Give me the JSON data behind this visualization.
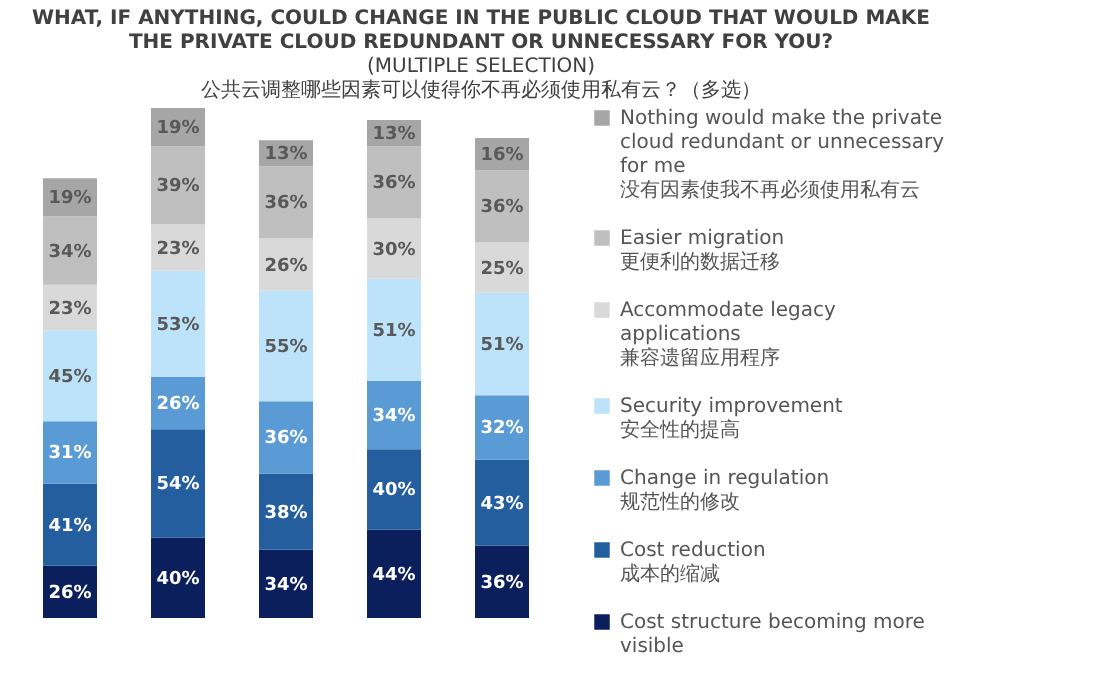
{
  "chart_data": {
    "type": "bar",
    "stacked": true,
    "title": [
      "WHAT, IF ANYTHING, COULD CHANGE IN THE PUBLIC CLOUD THAT WOULD MAKE",
      "THE PRIVATE CLOUD REDUNDANT OR UNNECESSARY FOR YOU?"
    ],
    "subtitle": [
      "(MULTIPLE SELECTION)",
      "公共云调整哪些因素可以使得你不再必须使用私有云？（多选）"
    ],
    "categories": [
      null,
      null,
      null,
      null,
      null
    ],
    "tick_labels": false,
    "legend": "right",
    "series": [
      {
        "name": "Cost structure becoming more visible",
        "color": "#0b1f5c",
        "values": [
          26,
          40,
          34,
          44,
          36
        ],
        "value_labels": [
          "26%",
          "40%",
          "34%",
          "44%",
          "36%"
        ]
      },
      {
        "name": "Cost reduction 成本的缩减",
        "color": "#255e9e",
        "values": [
          41,
          54,
          38,
          40,
          43
        ],
        "value_labels": [
          "41%",
          "54%",
          "38%",
          "40%",
          "43%"
        ]
      },
      {
        "name": "Change in regulation 规范性的修改",
        "color": "#5b9bd5",
        "values": [
          31,
          26,
          36,
          34,
          32
        ],
        "value_labels": [
          "31%",
          "26%",
          "36%",
          "34%",
          "32%"
        ]
      },
      {
        "name": "Security improvement 安全性的提高",
        "color": "#bde3fa",
        "values": [
          45,
          53,
          55,
          51,
          51
        ],
        "value_labels": [
          "45%",
          "53%",
          "55%",
          "51%",
          "51%"
        ]
      },
      {
        "name": "Accommodate legacy applications 兼容遗留应用程序",
        "color": "#d9d9d9",
        "values": [
          23,
          23,
          26,
          30,
          25
        ],
        "value_labels": [
          "23%",
          "23%",
          "26%",
          "30%",
          "25%"
        ]
      },
      {
        "name": "Easier migration 更便利的数据迁移",
        "color": "#bfbfbf",
        "values": [
          34,
          39,
          36,
          36,
          36
        ],
        "value_labels": [
          "34%",
          "39%",
          "36%",
          "36%",
          "36%"
        ]
      },
      {
        "name": "Nothing would make the private cloud redundant or unnecessary for me 没有因素使我不再必须使用私有云",
        "color": "#a6a6a6",
        "values": [
          19,
          19,
          13,
          13,
          16
        ],
        "value_labels": [
          "19%",
          "19%",
          "13%",
          "13%",
          "16%"
        ]
      }
    ]
  }
}
